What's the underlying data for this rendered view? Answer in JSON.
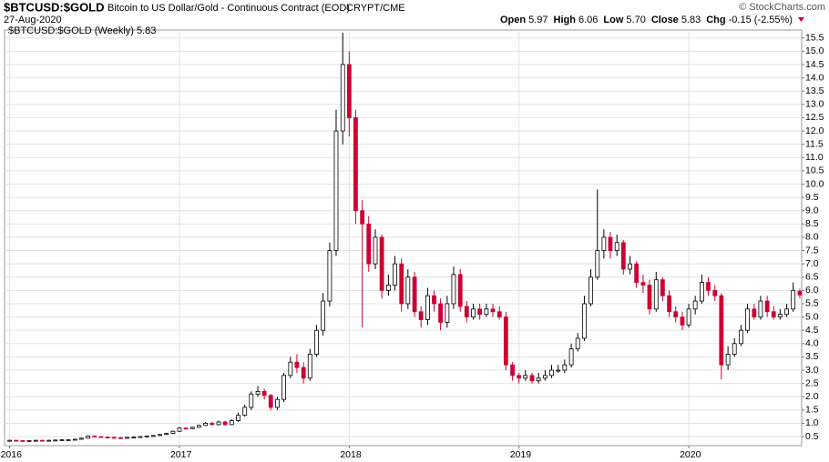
{
  "chart_data": {
    "type": "candlestick",
    "header": {
      "symbol": "$BTCUSD:$GOLD",
      "description": "Bitcoin to US Dollar/Gold - Continuous Contract (EOD)",
      "exchange": "CRYPT/CME",
      "date": "27-Aug-2020",
      "copyright": "© StockCharts.com",
      "open_label": "Open",
      "open": "5.97",
      "high_label": "High",
      "high": "6.06",
      "low_label": "Low",
      "low": "5.70",
      "close_label": "Close",
      "close": "5.83",
      "chg_label": "Chg",
      "chg": "-0.15 (-2.55%)"
    },
    "legend_label": "$BTCUSD:$GOLD (Weekly) 5.83",
    "up_color": "#000000",
    "down_color": "#cc0033",
    "xlim": [
      2015.97,
      2020.665
    ],
    "xticks": [
      2016,
      2017,
      2018,
      2019,
      2020
    ],
    "ylim": [
      0.16,
      15.8
    ],
    "yticks": [
      0.5,
      {
        "value": 1,
        "label": "1.0"
      },
      1.5,
      {
        "value": 2,
        "label": "2.0"
      },
      2.5,
      {
        "value": 3,
        "label": "3.0"
      },
      3.5,
      {
        "value": 4,
        "label": "4.0"
      },
      4.5,
      {
        "value": 5,
        "label": "5.0"
      },
      5.5,
      {
        "value": 6,
        "label": "6.0"
      },
      6.5,
      {
        "value": 7,
        "label": "7.0"
      },
      7.5,
      {
        "value": 8,
        "label": "8.0"
      },
      8.5,
      {
        "value": 9,
        "label": "9.0"
      },
      9.5,
      {
        "value": 10,
        "label": "10.0"
      },
      10.5,
      {
        "value": 11,
        "label": "11.0"
      },
      11.5,
      {
        "value": 12,
        "label": "12.0"
      },
      12.5,
      {
        "value": 13,
        "label": "13.0"
      },
      13.5,
      {
        "value": 14,
        "label": "14.0"
      },
      14.5,
      {
        "value": 15,
        "label": "15.0"
      },
      15.5
    ],
    "grid": true,
    "x": [
      2016.0,
      2016.038,
      2016.077,
      2016.115,
      2016.154,
      2016.192,
      2016.231,
      2016.269,
      2016.308,
      2016.346,
      2016.385,
      2016.423,
      2016.462,
      2016.5,
      2016.538,
      2016.577,
      2016.615,
      2016.654,
      2016.692,
      2016.731,
      2016.769,
      2016.808,
      2016.846,
      2016.885,
      2016.923,
      2016.962,
      2017.0,
      2017.038,
      2017.077,
      2017.115,
      2017.154,
      2017.192,
      2017.231,
      2017.269,
      2017.308,
      2017.346,
      2017.385,
      2017.423,
      2017.462,
      2017.5,
      2017.538,
      2017.577,
      2017.615,
      2017.654,
      2017.692,
      2017.731,
      2017.769,
      2017.808,
      2017.846,
      2017.885,
      2017.923,
      2017.962,
      2018.0,
      2018.038,
      2018.077,
      2018.115,
      2018.154,
      2018.192,
      2018.231,
      2018.269,
      2018.308,
      2018.346,
      2018.385,
      2018.423,
      2018.462,
      2018.5,
      2018.538,
      2018.577,
      2018.615,
      2018.654,
      2018.692,
      2018.731,
      2018.769,
      2018.808,
      2018.846,
      2018.885,
      2018.923,
      2018.962,
      2019.0,
      2019.038,
      2019.077,
      2019.115,
      2019.154,
      2019.192,
      2019.231,
      2019.269,
      2019.308,
      2019.346,
      2019.385,
      2019.423,
      2019.462,
      2019.5,
      2019.538,
      2019.577,
      2019.615,
      2019.654,
      2019.692,
      2019.731,
      2019.769,
      2019.808,
      2019.846,
      2019.885,
      2019.923,
      2019.962,
      2020.0,
      2020.038,
      2020.077,
      2020.115,
      2020.154,
      2020.192,
      2020.231,
      2020.269,
      2020.308,
      2020.346,
      2020.385,
      2020.423,
      2020.462,
      2020.5,
      2020.538,
      2020.577,
      2020.615,
      2020.654
    ],
    "open": [
      0.35,
      0.36,
      0.35,
      0.34,
      0.35,
      0.36,
      0.35,
      0.36,
      0.37,
      0.38,
      0.38,
      0.4,
      0.44,
      0.52,
      0.5,
      0.48,
      0.47,
      0.46,
      0.45,
      0.47,
      0.48,
      0.5,
      0.52,
      0.54,
      0.58,
      0.62,
      0.7,
      0.82,
      0.8,
      0.85,
      0.92,
      1.0,
      0.95,
      1.05,
      0.95,
      1.1,
      1.3,
      1.6,
      2.1,
      2.2,
      2.05,
      1.6,
      1.9,
      2.8,
      3.3,
      3.1,
      2.7,
      3.6,
      4.5,
      5.6,
      7.5,
      12.0,
      14.5,
      12.5,
      9.0,
      8.5,
      7.0,
      8.0,
      6.0,
      6.2,
      7.0,
      5.5,
      6.5,
      5.2,
      4.9,
      5.8,
      5.5,
      4.8,
      5.5,
      6.6,
      5.4,
      5.0,
      5.3,
      5.1,
      5.3,
      5.2,
      5.0,
      3.2,
      2.8,
      2.7,
      2.8,
      2.6,
      2.7,
      2.8,
      3.0,
      3.0,
      3.2,
      3.8,
      4.2,
      5.5,
      6.5,
      7.5,
      8.0,
      7.5,
      7.8,
      6.8,
      7.0,
      6.3,
      6.2,
      5.3,
      6.4,
      5.8,
      5.2,
      5.0,
      4.7,
      5.3,
      5.6,
      6.3,
      6.0,
      5.8,
      3.2,
      3.6,
      4.0,
      4.5,
      5.3,
      5.0,
      5.6,
      5.2,
      5.0,
      5.1,
      5.3,
      5.97
    ],
    "high": [
      0.38,
      0.38,
      0.37,
      0.37,
      0.38,
      0.38,
      0.38,
      0.39,
      0.4,
      0.4,
      0.42,
      0.46,
      0.55,
      0.54,
      0.52,
      0.5,
      0.49,
      0.48,
      0.49,
      0.5,
      0.52,
      0.54,
      0.56,
      0.6,
      0.64,
      0.73,
      0.86,
      0.85,
      0.87,
      0.95,
      1.05,
      1.05,
      1.1,
      1.1,
      1.15,
      1.4,
      1.7,
      2.2,
      2.4,
      2.3,
      2.1,
      2.0,
      2.9,
      3.5,
      3.6,
      3.3,
      3.8,
      4.7,
      5.9,
      7.8,
      12.8,
      15.7,
      15.0,
      12.8,
      9.4,
      8.8,
      8.3,
      8.1,
      6.6,
      7.3,
      7.2,
      6.8,
      6.7,
      5.4,
      6.1,
      6.0,
      5.7,
      5.8,
      6.9,
      6.8,
      5.6,
      5.5,
      5.5,
      5.5,
      5.5,
      5.4,
      5.2,
      3.3,
      2.9,
      3.0,
      2.9,
      2.9,
      3.0,
      3.2,
      3.2,
      3.4,
      4.0,
      4.4,
      5.8,
      6.8,
      9.8,
      8.3,
      8.2,
      8.1,
      7.9,
      7.3,
      7.1,
      6.6,
      6.4,
      6.7,
      6.5,
      6.0,
      5.4,
      5.2,
      5.5,
      5.8,
      6.6,
      6.5,
      6.2,
      5.9,
      3.9,
      4.2,
      4.7,
      5.5,
      5.5,
      5.8,
      5.8,
      5.4,
      5.3,
      5.5,
      6.3,
      6.06
    ],
    "low": [
      0.33,
      0.33,
      0.32,
      0.33,
      0.34,
      0.33,
      0.34,
      0.35,
      0.36,
      0.36,
      0.38,
      0.39,
      0.43,
      0.48,
      0.46,
      0.45,
      0.44,
      0.43,
      0.44,
      0.46,
      0.47,
      0.49,
      0.51,
      0.53,
      0.56,
      0.6,
      0.68,
      0.76,
      0.78,
      0.83,
      0.9,
      0.92,
      0.92,
      0.92,
      0.93,
      1.05,
      1.25,
      1.5,
      2.0,
      1.9,
      1.5,
      1.5,
      1.8,
      2.7,
      2.9,
      2.5,
      2.6,
      3.5,
      4.3,
      5.4,
      7.3,
      11.5,
      11.8,
      8.5,
      4.6,
      6.7,
      6.8,
      5.7,
      5.8,
      6.0,
      5.2,
      5.3,
      5.0,
      4.6,
      4.7,
      5.2,
      4.5,
      4.6,
      5.3,
      5.2,
      4.8,
      4.9,
      4.9,
      5.0,
      5.0,
      4.9,
      3.0,
      2.6,
      2.5,
      2.6,
      2.5,
      2.5,
      2.6,
      2.7,
      2.9,
      2.9,
      3.1,
      3.7,
      4.1,
      5.4,
      6.4,
      7.2,
      7.2,
      7.3,
      6.6,
      6.6,
      6.1,
      5.9,
      5.1,
      5.2,
      5.6,
      5.0,
      4.8,
      4.5,
      4.6,
      5.1,
      5.5,
      5.8,
      5.6,
      2.65,
      3.0,
      3.5,
      3.9,
      4.4,
      4.9,
      4.9,
      5.0,
      4.9,
      4.9,
      5.0,
      5.2,
      5.7
    ],
    "close": [
      0.36,
      0.35,
      0.34,
      0.35,
      0.36,
      0.35,
      0.36,
      0.37,
      0.38,
      0.38,
      0.4,
      0.44,
      0.52,
      0.5,
      0.48,
      0.47,
      0.46,
      0.45,
      0.47,
      0.48,
      0.5,
      0.52,
      0.54,
      0.58,
      0.62,
      0.7,
      0.82,
      0.8,
      0.85,
      0.92,
      1.0,
      0.95,
      1.05,
      0.95,
      1.1,
      1.3,
      1.6,
      2.1,
      2.2,
      2.05,
      1.6,
      1.9,
      2.8,
      3.3,
      3.1,
      2.7,
      3.6,
      4.5,
      5.6,
      7.5,
      12.0,
      14.5,
      12.5,
      9.0,
      8.5,
      7.0,
      8.0,
      6.0,
      6.2,
      7.0,
      5.5,
      6.5,
      5.2,
      4.9,
      5.8,
      5.5,
      4.8,
      5.5,
      6.6,
      5.4,
      5.0,
      5.3,
      5.1,
      5.3,
      5.2,
      5.0,
      3.2,
      2.8,
      2.7,
      2.8,
      2.6,
      2.7,
      2.8,
      3.0,
      3.0,
      3.2,
      3.8,
      4.2,
      5.5,
      6.5,
      7.5,
      8.0,
      7.5,
      7.8,
      6.8,
      7.0,
      6.3,
      6.2,
      5.3,
      6.4,
      5.8,
      5.2,
      5.0,
      4.7,
      5.3,
      5.6,
      6.3,
      6.0,
      5.8,
      3.2,
      3.6,
      4.0,
      4.5,
      5.3,
      5.0,
      5.6,
      5.2,
      5.0,
      5.1,
      5.3,
      6.0,
      5.83
    ]
  }
}
